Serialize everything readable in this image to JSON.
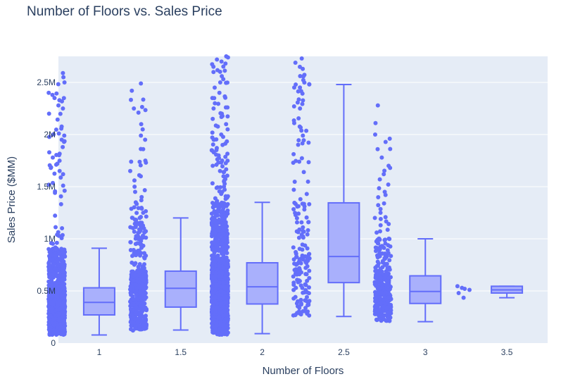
{
  "chart_data": {
    "type": "box",
    "title": "Number of Floors vs. Sales Price",
    "xlabel": "Number of Floors",
    "ylabel": "Sales Price ($MM)",
    "ylim": [
      0,
      2750000
    ],
    "yticks": [
      {
        "value": 0,
        "label": "0"
      },
      {
        "value": 500000,
        "label": "0.5M"
      },
      {
        "value": 1000000,
        "label": "1M"
      },
      {
        "value": 1500000,
        "label": "1.5M"
      },
      {
        "value": 2000000,
        "label": "2M"
      },
      {
        "value": 2500000,
        "label": "2.5M"
      }
    ],
    "categories": [
      "1",
      "1.5",
      "2",
      "2.5",
      "3",
      "3.5"
    ],
    "boxes": [
      {
        "category": "1",
        "whisker_low": 78000,
        "q1": 270000,
        "median": 390000,
        "q3": 530000,
        "whisker_high": 910000,
        "points_min": 80000,
        "points_max": 2590000,
        "density": 900,
        "outliers": [
          2590000,
          2550000,
          2500000,
          2400000,
          2380000,
          2330000,
          2280000,
          2250000,
          2200000,
          2010000,
          1990000,
          1950000,
          1930000,
          1880000,
          1830000,
          1780000,
          1720000,
          1680000,
          1650000
        ]
      },
      {
        "category": "1.5",
        "whisker_low": 125000,
        "q1": 345000,
        "median": 525000,
        "q3": 690000,
        "whisker_high": 1200000,
        "points_min": 120000,
        "points_max": 2490000,
        "density": 420,
        "outliers": [
          2490000,
          2420000,
          2250000,
          2210000,
          2100000,
          2050000,
          1990000,
          1950000,
          1860000,
          1750000,
          1740000,
          1650000,
          1600000,
          1560000,
          1500000,
          1450000,
          1400000,
          1350000,
          1290000,
          1250000
        ]
      },
      {
        "category": "2",
        "whisker_low": 90000,
        "q1": 375000,
        "median": 540000,
        "q3": 770000,
        "whisker_high": 1350000,
        "points_min": 80000,
        "points_max": 2750000,
        "density": 1300,
        "outliers": [
          2750000,
          2740000,
          2700000,
          2650000,
          2600000,
          2560000,
          2500000,
          2450000,
          2400000,
          2350000,
          2300000,
          2250000,
          2200000,
          2150000,
          2100000,
          2050000,
          2000000,
          1950000,
          1900000,
          1850000,
          1800000,
          1750000,
          1700000,
          1650000,
          1600000,
          1550000,
          1500000,
          1450000,
          1400000
        ]
      },
      {
        "category": "2.5",
        "whisker_low": 255000,
        "q1": 580000,
        "median": 830000,
        "q3": 1345000,
        "whisker_high": 2480000,
        "points_min": 260000,
        "points_max": 2730000,
        "density": 170,
        "outliers": [
          2730000,
          2630000,
          2560000,
          2480000,
          2270000,
          2250000,
          2110000,
          1990000,
          1730000
        ]
      },
      {
        "category": "3",
        "whisker_low": 205000,
        "q1": 380000,
        "median": 495000,
        "q3": 645000,
        "whisker_high": 1000000,
        "points_min": 210000,
        "points_max": 2280000,
        "density": 320,
        "outliers": [
          2280000,
          2000000,
          1960000,
          1860000,
          1780000,
          1700000,
          1680000,
          1620000,
          1520000,
          1450000,
          1420000,
          1340000,
          1250000,
          1200000,
          1130000,
          1060000
        ]
      },
      {
        "category": "3.5",
        "whisker_low": 435000,
        "q1": 480000,
        "median": 510000,
        "q3": 545000,
        "whisker_high": 545000,
        "points_min": 435000,
        "points_max": 545000,
        "density": 0,
        "outliers": [
          545000,
          530000,
          520000,
          510000,
          480000,
          435000
        ]
      }
    ],
    "legend": "none",
    "grid": true,
    "colors": {
      "plot_bg": "#e5ecf6",
      "grid": "#ffffff",
      "marker": "#636efa",
      "box_fill": "#a9b0fc",
      "box_line": "#636efa",
      "text": "#2a3f5f"
    }
  }
}
